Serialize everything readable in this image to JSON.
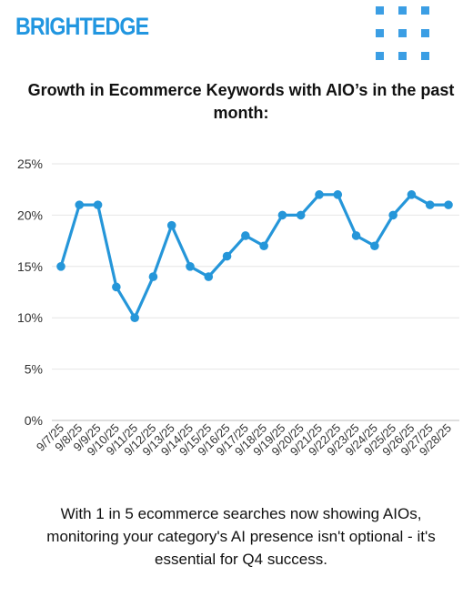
{
  "brand": {
    "logo_text": "BRIGHTEDGE",
    "logo_color": "#2196e0"
  },
  "decor": {
    "icon": "dot-grid-icon",
    "color": "#3b9ee4"
  },
  "chart_data": {
    "type": "line",
    "title": "Growth in Ecommerce Keywords with AIO’s in the past month:",
    "xlabel": "",
    "ylabel": "",
    "categories": [
      "9/7/25",
      "9/8/25",
      "9/9/25",
      "9/10/25",
      "9/11/25",
      "9/12/25",
      "9/13/25",
      "9/14/25",
      "9/15/25",
      "9/16/25",
      "9/17/25",
      "9/18/25",
      "9/19/25",
      "9/20/25",
      "9/21/25",
      "9/22/25",
      "9/23/25",
      "9/24/25",
      "9/25/25",
      "9/26/25",
      "9/27/25",
      "9/28/25"
    ],
    "series": [
      {
        "values": [
          15,
          21,
          21,
          13,
          10,
          14,
          19,
          15,
          14,
          16,
          18,
          17,
          20,
          20,
          22,
          22,
          18,
          17,
          20,
          22,
          21,
          21
        ],
        "color": "#2596d9"
      }
    ],
    "ylim": [
      0,
      25
    ],
    "yticks": [
      "0%",
      "5%",
      "10%",
      "15%",
      "20%",
      "25%"
    ],
    "grid": true,
    "legend": "none"
  },
  "footer": {
    "text": "With 1 in 5 ecommerce searches now showing AIOs, monitoring your category's AI presence isn't optional - it's essential for Q4 success."
  }
}
